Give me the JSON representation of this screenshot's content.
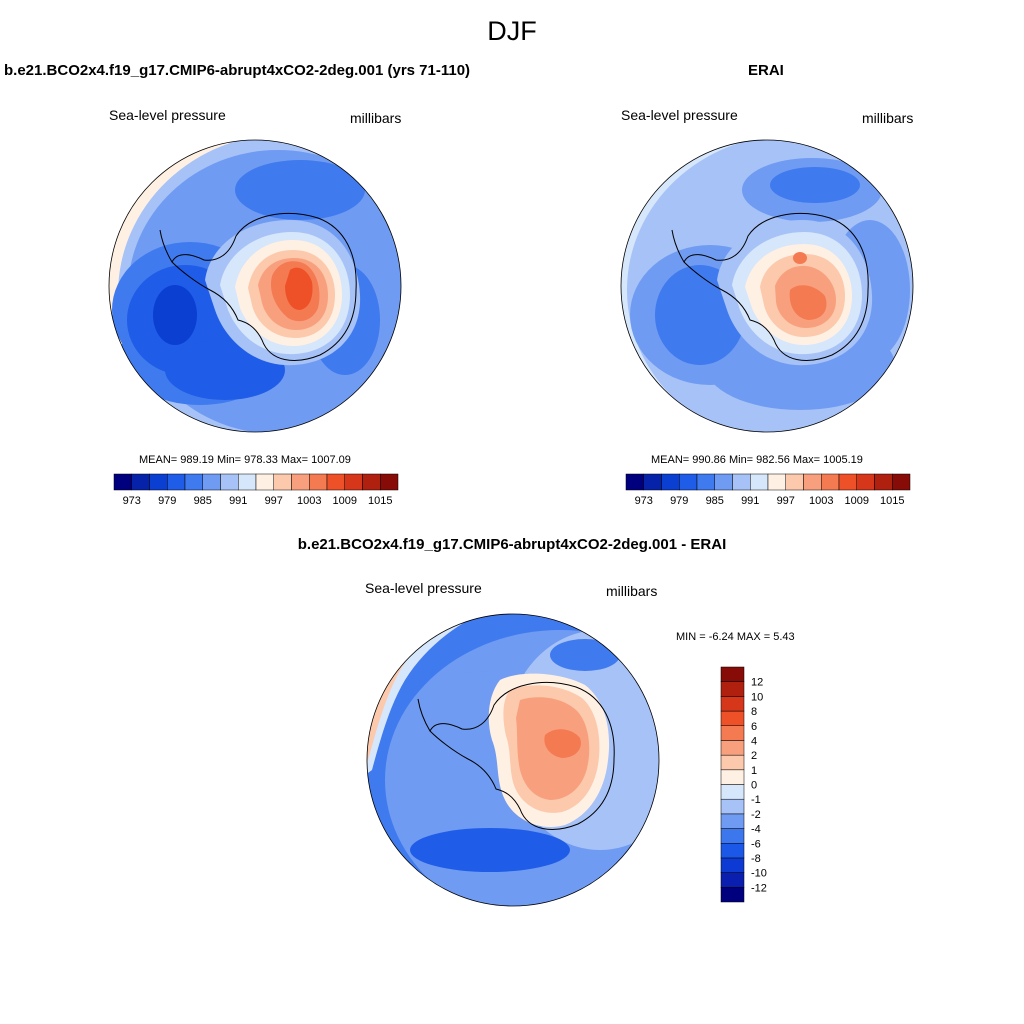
{
  "figure": {
    "title": "DJF"
  },
  "panels": [
    {
      "title": "b.e21.BCO2x4.f19_g17.CMIP6-abrupt4xCO2-2deg.001 (yrs 71-110)",
      "left_label": "Sea-level pressure",
      "right_label": "millibars",
      "stats": "MEAN= 989.19  Min= 978.33  Max= 1007.09"
    },
    {
      "title": "ERAI",
      "left_label": "Sea-level pressure",
      "right_label": "millibars",
      "stats": "MEAN= 990.86  Min= 982.56  Max= 1005.19"
    },
    {
      "title": "b.e21.BCO2x4.f19_g17.CMIP6-abrupt4xCO2-2deg.001 - ERAI",
      "left_label": "Sea-level pressure",
      "right_label": "millibars",
      "stats": "MIN =  -6.24 MAX =   5.43"
    }
  ],
  "colorbar_abs": {
    "colors": [
      "#00007f",
      "#0522a8",
      "#0a3fd1",
      "#1f5ce8",
      "#3f7aee",
      "#6f9bf2",
      "#a6c2f7",
      "#d6e6fb",
      "#fff0e4",
      "#fcc9ac",
      "#f8a07e",
      "#f47a52",
      "#ee5127",
      "#d6361a",
      "#b0200f",
      "#870b06"
    ],
    "tick_labels": [
      "973",
      "979",
      "985",
      "991",
      "997",
      "1003",
      "1009",
      "1015"
    ]
  },
  "colorbar_diff": {
    "colors": [
      "#00007f",
      "#0a1fb0",
      "#0c3ad2",
      "#1b58e8",
      "#3d77ee",
      "#6f9bf2",
      "#a6c2f7",
      "#d6e6fb",
      "#fff0e4",
      "#fcc9ac",
      "#f8a07e",
      "#f47a52",
      "#ee5127",
      "#d6361a",
      "#b0200f",
      "#870b06"
    ],
    "tick_labels": [
      "-12",
      "-10",
      "-8",
      "-6",
      "-4",
      "-2",
      "-1",
      "0",
      "1",
      "2",
      "4",
      "6",
      "8",
      "10",
      "12"
    ]
  }
}
